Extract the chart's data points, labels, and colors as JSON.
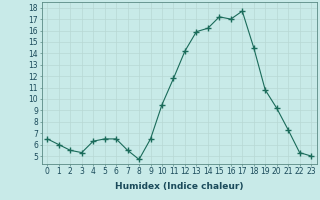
{
  "x": [
    0,
    1,
    2,
    3,
    4,
    5,
    6,
    7,
    8,
    9,
    10,
    11,
    12,
    13,
    14,
    15,
    16,
    17,
    18,
    19,
    20,
    21,
    22,
    23
  ],
  "y": [
    6.5,
    6.0,
    5.5,
    5.3,
    6.3,
    6.5,
    6.5,
    5.5,
    4.7,
    6.5,
    9.5,
    11.8,
    14.2,
    15.9,
    16.2,
    17.2,
    17.0,
    17.7,
    14.5,
    10.8,
    9.2,
    7.3,
    5.3,
    5.0
  ],
  "line_color": "#1a6b5a",
  "marker": "+",
  "marker_size": 4,
  "bg_color": "#c8eae8",
  "grid_color": "#b8d8d4",
  "xlabel": "Humidex (Indice chaleur)",
  "xlim": [
    -0.5,
    23.5
  ],
  "ylim": [
    4.3,
    18.5
  ],
  "yticks": [
    5,
    6,
    7,
    8,
    9,
    10,
    11,
    12,
    13,
    14,
    15,
    16,
    17,
    18
  ],
  "xticks": [
    0,
    1,
    2,
    3,
    4,
    5,
    6,
    7,
    8,
    9,
    10,
    11,
    12,
    13,
    14,
    15,
    16,
    17,
    18,
    19,
    20,
    21,
    22,
    23
  ],
  "tick_label_fontsize": 5.5,
  "xlabel_fontsize": 6.5,
  "tick_color": "#1a4a5a",
  "label_color": "#1a4a5a"
}
